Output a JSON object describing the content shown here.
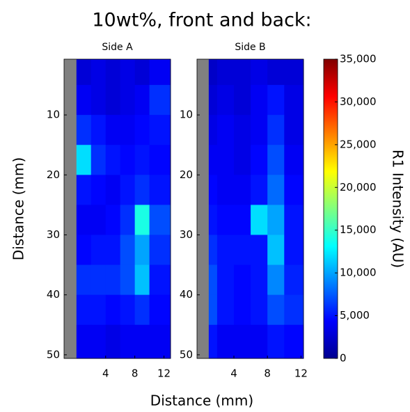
{
  "title": "10wt%, front and back:",
  "xlabel": "Distance (mm)",
  "ylabel": "Distance (mm)",
  "colorbar": {
    "label": "R1 Intensity (AU)",
    "lim": [
      0,
      35000
    ],
    "colormap": "jet",
    "ticks": [
      0,
      {
        "value": 5000,
        "label": "5,000"
      },
      {
        "value": 10000,
        "label": "10,000"
      },
      {
        "value": 15000,
        "label": "15,000"
      },
      {
        "value": 20000,
        "label": "20,000"
      },
      {
        "value": 25000,
        "label": "25,000"
      },
      {
        "value": 30000,
        "label": "30,000"
      },
      {
        "value": 35000,
        "label": "35,000"
      }
    ]
  },
  "chart_data": [
    {
      "type": "heatmap",
      "title": "Side A",
      "xlim": [
        -1.7,
        12.9
      ],
      "ylim": [
        50.6,
        0.7
      ],
      "xticks": [
        4,
        8,
        12
      ],
      "yticks": [
        10,
        20,
        30,
        40,
        50
      ],
      "x_edges": [
        -1.7,
        0,
        2,
        4,
        6,
        8,
        10,
        12.9
      ],
      "y_edges": [
        0.7,
        5,
        10,
        15,
        20,
        25,
        30,
        35,
        40,
        45,
        50.6
      ],
      "null_color": "#808080",
      "z": [
        [
          null,
          3000,
          3500,
          3000,
          3500,
          3000,
          4000
        ],
        [
          null,
          4000,
          3500,
          3000,
          3500,
          4000,
          6000
        ],
        [
          null,
          6000,
          5000,
          4000,
          4000,
          4500,
          5000
        ],
        [
          null,
          12000,
          6000,
          5000,
          4500,
          5000,
          4500
        ],
        [
          null,
          5000,
          4500,
          4000,
          5000,
          6000,
          5000
        ],
        [
          null,
          4000,
          4000,
          4500,
          6000,
          14000,
          7000
        ],
        [
          null,
          4500,
          5000,
          5000,
          7000,
          10000,
          6000
        ],
        [
          null,
          6000,
          6000,
          6000,
          7000,
          11000,
          5000
        ],
        [
          null,
          5000,
          5000,
          4500,
          5000,
          6000,
          4500
        ],
        [
          null,
          4000,
          4000,
          3500,
          4000,
          4000,
          4000
        ]
      ]
    },
    {
      "type": "heatmap",
      "title": "Side B",
      "xlim": [
        -0.4,
        12.3
      ],
      "ylim": [
        50.6,
        0.7
      ],
      "xticks": [
        4,
        8,
        12
      ],
      "yticks": [
        10,
        20,
        30,
        40,
        50
      ],
      "x_edges": [
        -0.4,
        1,
        2,
        4,
        6,
        8,
        10,
        12.3
      ],
      "y_edges": [
        0.7,
        5,
        10,
        15,
        20,
        25,
        30,
        35,
        40,
        45,
        50.6
      ],
      "null_color": "#808080",
      "z": [
        [
          null,
          2500,
          3000,
          3000,
          3500,
          3000,
          3000
        ],
        [
          null,
          3000,
          3500,
          3000,
          4000,
          5000,
          3500
        ],
        [
          null,
          3500,
          4000,
          3500,
          4000,
          6000,
          3500
        ],
        [
          null,
          4000,
          4000,
          3500,
          4500,
          7000,
          4000
        ],
        [
          null,
          4500,
          4000,
          4000,
          5000,
          8000,
          4500
        ],
        [
          null,
          5000,
          4500,
          4500,
          12000,
          10000,
          5000
        ],
        [
          null,
          6000,
          5000,
          5000,
          5000,
          11000,
          5000
        ],
        [
          null,
          7000,
          5000,
          4500,
          5000,
          9000,
          5500
        ],
        [
          null,
          7000,
          5000,
          4500,
          5000,
          7000,
          6000
        ],
        [
          null,
          5000,
          4000,
          4000,
          4000,
          5000,
          4500
        ]
      ]
    }
  ]
}
